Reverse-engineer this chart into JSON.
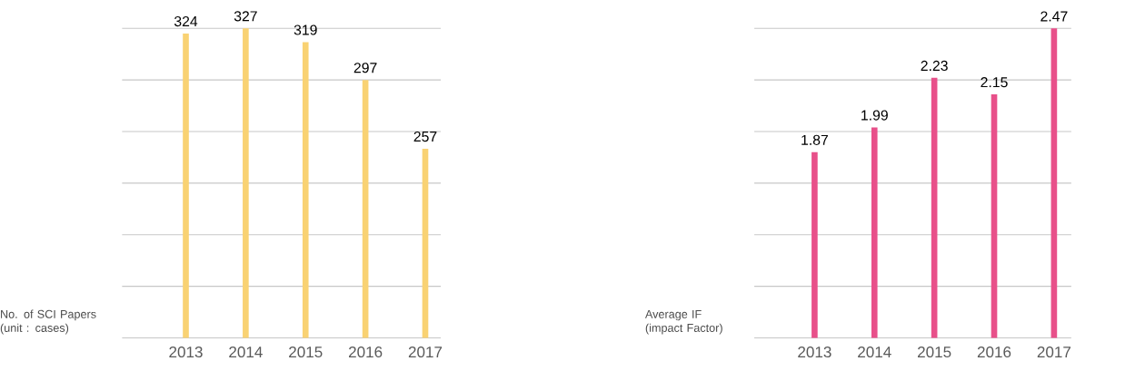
{
  "chart_data": [
    {
      "type": "bar",
      "ylabel": "No. of SCI Papers (unit : cases)",
      "categories": [
        "2013",
        "2014",
        "2015",
        "2016",
        "2017"
      ],
      "values": [
        324,
        327,
        319,
        297,
        257
      ],
      "color": "#f9d273",
      "ylim": [
        147,
        327
      ],
      "yticks": [
        {
          "value": 147,
          "label": null
        },
        {
          "value": 177,
          "label": null
        },
        {
          "value": 207,
          "label": null
        },
        {
          "value": 237,
          "label": null
        },
        {
          "value": 267,
          "label": null
        },
        {
          "value": 297,
          "label": null
        },
        {
          "value": 327,
          "label": null
        }
      ],
      "grid": "y",
      "tick_labels": "x",
      "data_labels": true
    },
    {
      "type": "bar",
      "ylabel": "Average IF (impact Factor)",
      "categories": [
        "2013",
        "2014",
        "2015",
        "2016",
        "2017"
      ],
      "values": [
        1.87,
        1.99,
        2.23,
        2.15,
        2.47
      ],
      "color": "#e8508a",
      "ylim": [
        0.97,
        2.47
      ],
      "yticks": [
        {
          "value": 0.97,
          "label": null
        },
        {
          "value": 1.22,
          "label": null
        },
        {
          "value": 1.47,
          "label": null
        },
        {
          "value": 1.72,
          "label": null
        },
        {
          "value": 1.97,
          "label": null
        },
        {
          "value": 2.22,
          "label": null
        },
        {
          "value": 2.47,
          "label": null
        }
      ],
      "grid": "y",
      "tick_labels": "x",
      "data_labels": true
    }
  ]
}
